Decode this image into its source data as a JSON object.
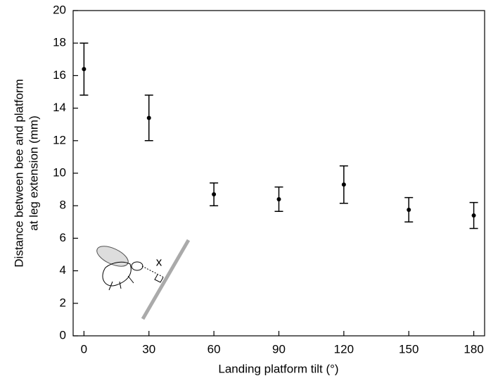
{
  "chart_data": {
    "type": "scatter",
    "xlabel": "Landing platform tilt (°)",
    "ylabel": [
      "Distance between bee and platform",
      "at leg extension (mm)"
    ],
    "annotation": "x",
    "series": [
      {
        "color": "#000000",
        "x": [
          0,
          30,
          60,
          90,
          120,
          150,
          180
        ],
        "values": [
          16.4,
          13.4,
          8.7,
          8.4,
          9.3,
          7.75,
          7.4
        ],
        "errors": [
          1.6,
          1.4,
          0.7,
          0.75,
          1.15,
          0.75,
          0.8
        ]
      }
    ],
    "xlim": [
      -5,
      185
    ],
    "xticks": [
      0,
      30,
      60,
      90,
      120,
      150,
      180
    ],
    "ylim": [
      0,
      20
    ],
    "yticks": [
      0,
      2,
      4,
      6,
      8,
      10,
      12,
      14,
      16,
      18,
      20
    ]
  }
}
